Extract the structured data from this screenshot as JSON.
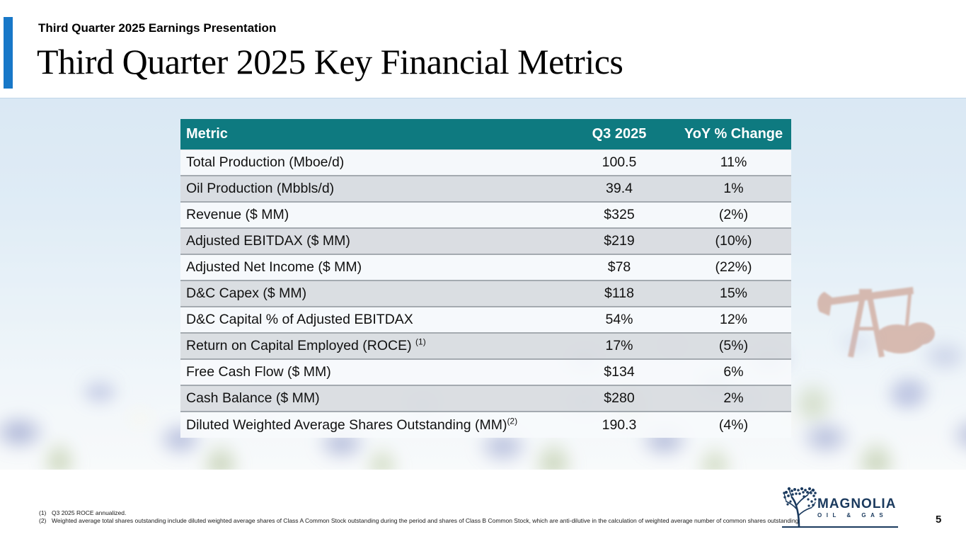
{
  "slide": {
    "eyebrow": "Third Quarter 2025 Earnings Presentation",
    "title": "Third Quarter 2025 Key Financial Metrics",
    "page_number": "5"
  },
  "colors": {
    "accent_blue": "#1878c8",
    "table_header_teal": "#0e7a80",
    "row_light": "#f7fafc",
    "row_gray": "#d9dce0",
    "logo_navy": "#1b3a5e",
    "pumpjack_rust": "#a85030"
  },
  "table": {
    "columns": [
      "Metric",
      "Q3 2025",
      "YoY % Change"
    ],
    "rows": [
      {
        "metric": "Total Production (Mboe/d)",
        "q3": "100.5",
        "yoy": "11%"
      },
      {
        "metric": "Oil Production (Mbbls/d)",
        "q3": "39.4",
        "yoy": "1%"
      },
      {
        "metric": "Revenue ($ MM)",
        "q3": "$325",
        "yoy": "(2%)"
      },
      {
        "metric": "Adjusted EBITDAX ($ MM)",
        "q3": "$219",
        "yoy": "(10%)"
      },
      {
        "metric": "Adjusted Net Income ($ MM)",
        "q3": "$78",
        "yoy": "(22%)"
      },
      {
        "metric": "D&C Capex ($ MM)",
        "q3": "$118",
        "yoy": "15%"
      },
      {
        "metric": "D&C Capital % of Adjusted EBITDAX",
        "q3": "54%",
        "yoy": "12%"
      },
      {
        "metric": "Return on Capital Employed (ROCE) ",
        "sup": "(1)",
        "q3": "17%",
        "yoy": "(5%)"
      },
      {
        "metric": "Free Cash Flow ($ MM)",
        "q3": "$134",
        "yoy": "6%"
      },
      {
        "metric": "Cash Balance ($ MM)",
        "q3": "$280",
        "yoy": "2%"
      },
      {
        "metric": "Diluted Weighted Average Shares Outstanding (MM)",
        "sup": "(2)",
        "q3": "190.3",
        "yoy": "(4%)"
      }
    ]
  },
  "footnotes": [
    {
      "num": "(1)",
      "text": "Q3 2025 ROCE annualized."
    },
    {
      "num": "(2)",
      "text": "Weighted average total shares outstanding include diluted weighted average shares of Class A Common Stock outstanding during the period and shares of Class B Common Stock, which are anti-dilutive in the calculation of weighted average number of common shares outstanding."
    }
  ],
  "logo": {
    "name": "MAGNOLIA",
    "subtitle": "OIL & GAS"
  }
}
